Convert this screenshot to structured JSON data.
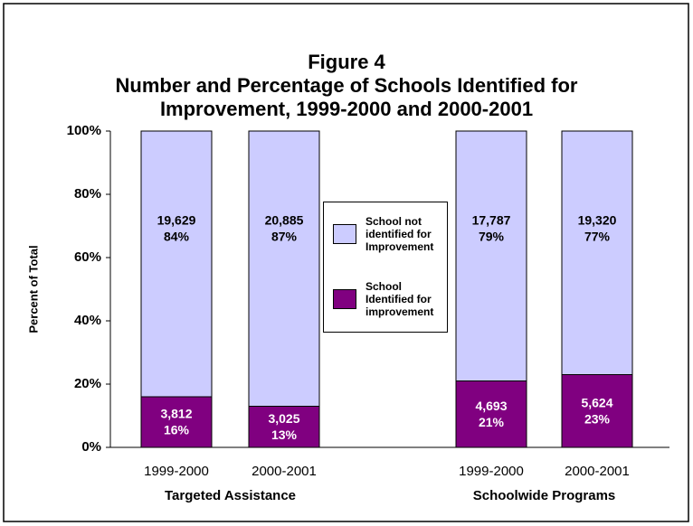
{
  "chart_data": {
    "type": "stacked_bar",
    "title": [
      "Figure 4",
      "Number and Percentage of Schools Identified for",
      "Improvement, 1999-2000 and 2000-2001"
    ],
    "y_label": "Percent of Total",
    "categories": [
      "1999-2000",
      "2000-2001",
      "1999-2000",
      "2000-2001"
    ],
    "groups": [
      "Targeted Assistance",
      "Schoolwide Programs"
    ],
    "series": [
      {
        "name": "School Identified for improvement",
        "color": "#800080",
        "values": [
          16,
          13,
          21,
          23
        ],
        "value_labels": [
          "16%",
          "13%",
          "21%",
          "23%"
        ],
        "count_labels": [
          "3,812",
          "3,025",
          "4,693",
          "5,624"
        ]
      },
      {
        "name": "School not identified for Improvement",
        "color": "#ccccff",
        "values": [
          84,
          87,
          79,
          77
        ],
        "value_labels": [
          "84%",
          "87%",
          "79%",
          "77%"
        ],
        "count_labels": [
          "19,629",
          "20,885",
          "17,787",
          "19,320"
        ]
      }
    ],
    "ylim": [
      0,
      100
    ],
    "yticks": [
      {
        "value": 0,
        "label": "0%"
      },
      {
        "value": 20,
        "label": "20%"
      },
      {
        "value": 40,
        "label": "40%"
      },
      {
        "value": 60,
        "label": "60%"
      },
      {
        "value": 80,
        "label": "80%"
      },
      {
        "value": 100,
        "label": "100%"
      }
    ],
    "legend": "center"
  }
}
